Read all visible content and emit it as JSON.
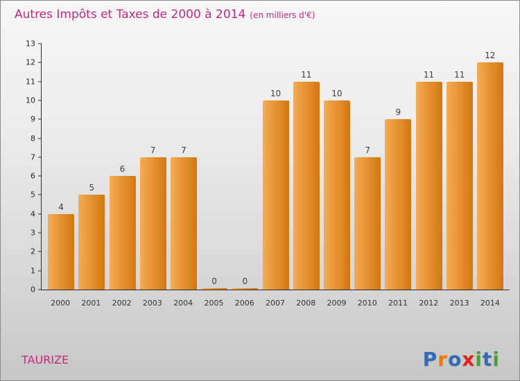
{
  "title": "Autres Impôts et Taxes de 2000 à 2014",
  "subtitle": "(en milliers d'€)",
  "footer": {
    "commune": "TAURIZE"
  },
  "logo": {
    "name": "Proxiti",
    "letters": [
      {
        "ch": "P",
        "color": "#2f6db8"
      },
      {
        "ch": "r",
        "color": "#f07d00"
      },
      {
        "ch": "o",
        "color": "#2f6db8"
      },
      {
        "ch": "x",
        "color": "#e2231a"
      },
      {
        "ch": "i",
        "color": "#4aa32e"
      },
      {
        "ch": "t",
        "color": "#2f6db8"
      },
      {
        "ch": "i",
        "color": "#4aa32e"
      }
    ]
  },
  "colors": {
    "title": "#c9257e",
    "commune": "#c9257e",
    "bar_gradient_start": "#f6ab55",
    "bar_gradient_end": "#d4770f",
    "value_label": "#3c3c3c",
    "axis": "#2b2b2b"
  },
  "chart_data": {
    "type": "bar",
    "title": "Autres Impôts et Taxes de 2000 à 2014",
    "subtitle": "(en milliers d'€)",
    "categories": [
      "2000",
      "2001",
      "2002",
      "2003",
      "2004",
      "2005",
      "2006",
      "2007",
      "2008",
      "2009",
      "2010",
      "2011",
      "2012",
      "2013",
      "2014"
    ],
    "values": [
      4,
      5,
      6,
      7,
      7,
      0,
      0,
      10,
      11,
      10,
      7,
      9,
      11,
      11,
      12
    ],
    "xlabel": "",
    "ylabel": "",
    "ylim": [
      0,
      13
    ],
    "ytick_step": 1,
    "grid": false,
    "legend": false
  }
}
